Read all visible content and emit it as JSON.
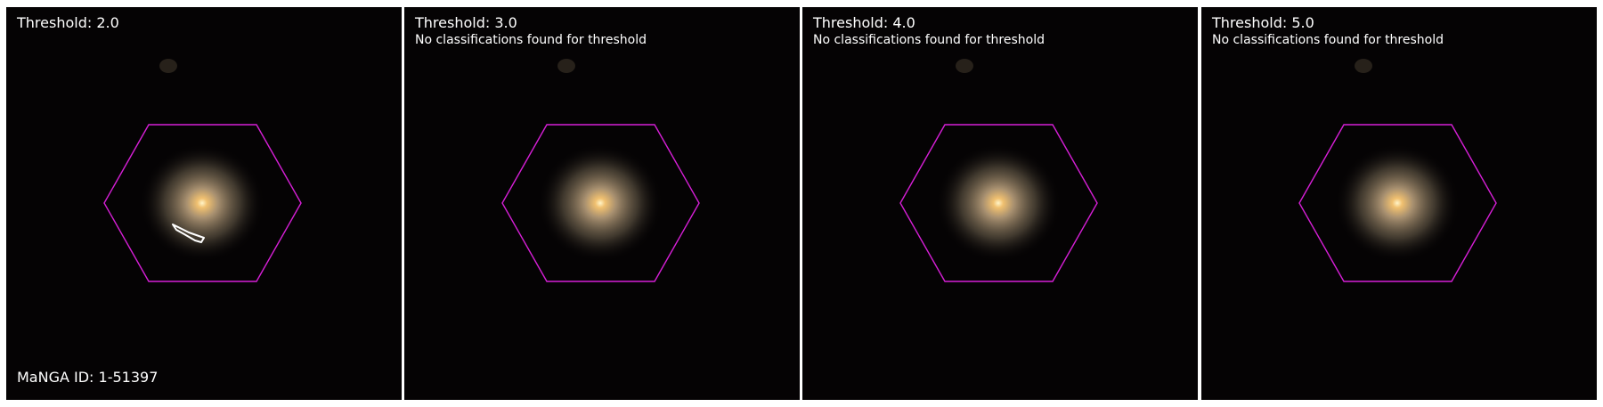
{
  "panels": [
    {
      "title": "Threshold: 2.0",
      "message": "",
      "has_contour": true
    },
    {
      "title": "Threshold: 3.0",
      "message": "No classifications found for threshold",
      "has_contour": false
    },
    {
      "title": "Threshold: 4.0",
      "message": "No classifications found for threshold",
      "has_contour": false
    },
    {
      "title": "Threshold: 5.0",
      "message": "No classifications found for threshold",
      "has_contour": false
    }
  ],
  "manga_id": "MaNGA ID: 1-51397",
  "colors": {
    "hexagon": "#d61fd6",
    "contour": "#ffffff",
    "background": "#050304",
    "galaxy_core": "#fff2c0",
    "galaxy_halo": "#8c8060"
  }
}
